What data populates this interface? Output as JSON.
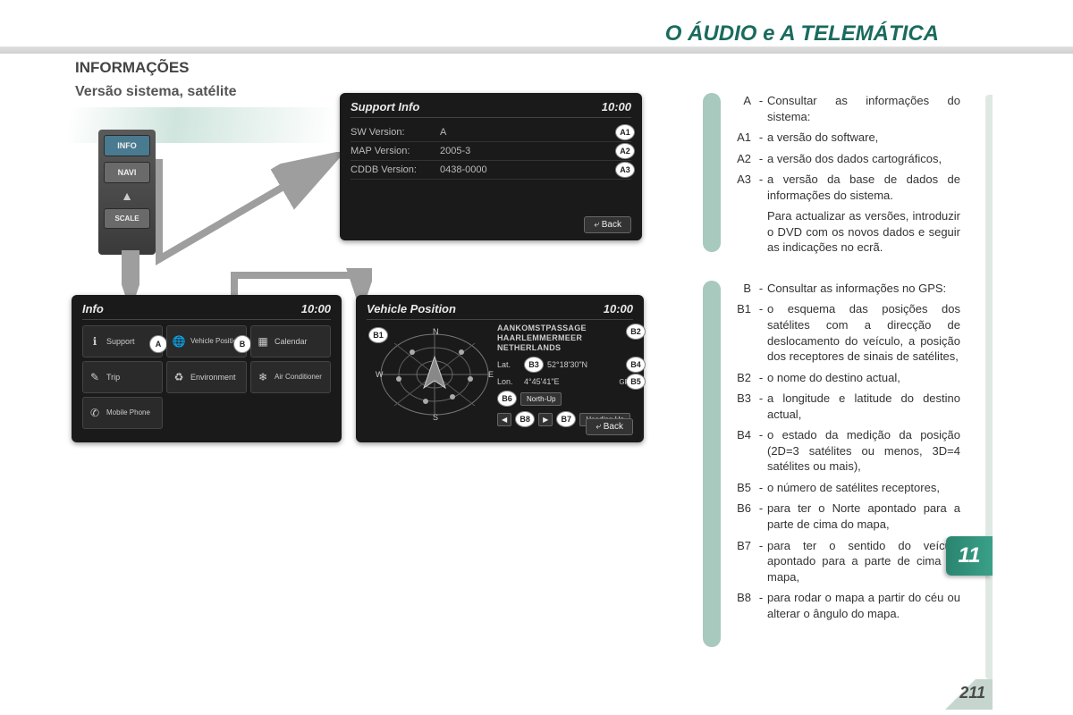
{
  "page": {
    "title": "O ÁUDIO e A TELEMÁTICA",
    "section": "INFORMAÇÕES",
    "subtitle": "Versão sistema, satélite",
    "chapter": "11",
    "number": "211",
    "colors": {
      "accent": "#1a6b5e",
      "pill": "#a8c9bd",
      "screen_bg": "#1a1a1a"
    }
  },
  "hw_buttons": {
    "b1": "INFO",
    "b2": "NAVI",
    "arrow": "▲",
    "b3": "SCALE"
  },
  "clock": "10:00",
  "support_screen": {
    "title": "Support Info",
    "rows": [
      {
        "k": "SW Version:",
        "v": "A",
        "marker": "A1"
      },
      {
        "k": "MAP Version:",
        "v": "2005-3",
        "marker": "A2"
      },
      {
        "k": "CDDB Version:",
        "v": "0438-0000",
        "marker": "A3"
      }
    ],
    "back": "Back"
  },
  "info_screen": {
    "title": "Info",
    "cells": [
      {
        "label": "Support",
        "marker": "A"
      },
      {
        "label": "Vehicle Position",
        "marker": "B"
      },
      {
        "label": "Calendar"
      },
      {
        "label": "Trip"
      },
      {
        "label": "Environment"
      },
      {
        "label": "Air Conditioner"
      },
      {
        "label": "Mobile Phone"
      }
    ]
  },
  "vehpos_screen": {
    "title": "Vehicle Position",
    "dest_l1": "AANKOMSTPASSAGE",
    "dest_l2": "HAARLEMMERMEER",
    "dest_l3": "NETHERLANDS",
    "lat_label": "Lat.",
    "lat_val": "52°18'30\"N",
    "lon_label": "Lon.",
    "lon_val": "4°45'41\"E",
    "gps_status": "3D",
    "gps_count": "GPS 8",
    "btn_northup": "North-Up",
    "btn_headingup": "Heading-Up",
    "back": "Back",
    "compass": {
      "n": "N",
      "s": "S",
      "e": "E",
      "w": "W"
    },
    "markers": {
      "b1": "B1",
      "b2": "B2",
      "b3": "B3",
      "b4": "B4",
      "b5": "B5",
      "b6": "B6",
      "b7": "B7",
      "b8": "B8"
    }
  },
  "legend": {
    "groupA": [
      {
        "tag": "A",
        "txt": "Consultar as informações do sistema:"
      },
      {
        "tag": "A1",
        "txt": "a versão do software,"
      },
      {
        "tag": "A2",
        "txt": "a versão dos dados cartográficos,"
      },
      {
        "tag": "A3",
        "txt": "a versão da base de dados de informações do sistema."
      },
      {
        "tag": "",
        "txt": "Para actualizar as versões, introduzir o DVD com os novos dados e seguir as indicações no ecrã."
      }
    ],
    "groupB": [
      {
        "tag": "B",
        "txt": "Consultar as informações no GPS:"
      },
      {
        "tag": "B1",
        "txt": "o esquema das posições dos satélites com a direcção de deslocamento do veículo, a posição dos receptores de sinais de satélites,"
      },
      {
        "tag": "B2",
        "txt": "o nome do destino actual,"
      },
      {
        "tag": "B3",
        "txt": "a longitude e latitude do destino actual,"
      },
      {
        "tag": "B4",
        "txt": "o estado da medição da posição (2D=3 satélites ou menos, 3D=4 satélites ou mais),"
      },
      {
        "tag": "B5",
        "txt": "o número de satélites receptores,"
      },
      {
        "tag": "B6",
        "txt": "para ter o Norte apontado para a parte de cima do mapa,"
      },
      {
        "tag": "B7",
        "txt": "para ter o sentido do veículo apontado para a parte de cima do mapa,"
      },
      {
        "tag": "B8",
        "txt": "para rodar o mapa a partir do céu ou alterar o ângulo do mapa."
      }
    ]
  }
}
